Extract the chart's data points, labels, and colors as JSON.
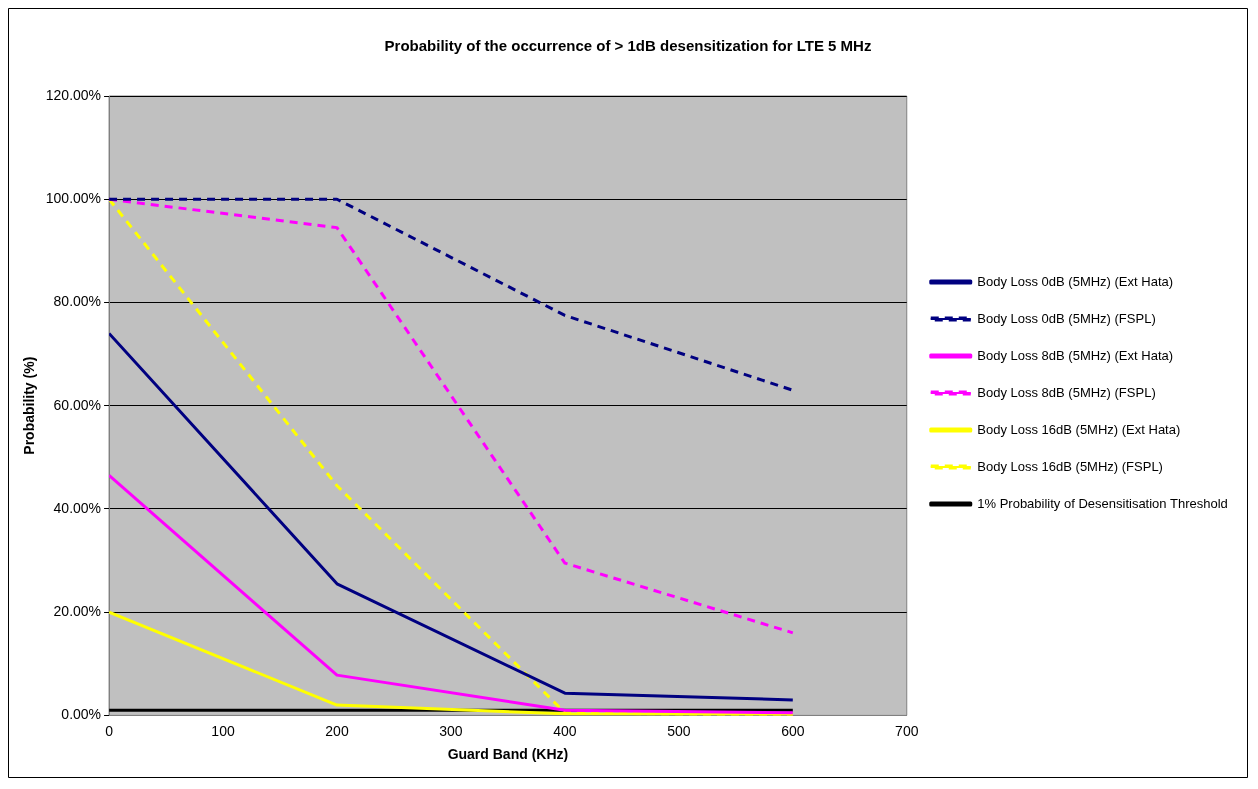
{
  "chart_data": {
    "type": "line",
    "title": "Probability of the occurrence of > 1dB desensitization for LTE 5 MHz",
    "xlabel": "Guard Band (KHz)",
    "ylabel": "Probability (%)",
    "x": [
      0,
      200,
      400,
      600
    ],
    "series": [
      {
        "name": "Body Loss 0dB (5MHz) (Ext Hata)",
        "color": "#000080",
        "line_style": "solid",
        "values": [
          74,
          25.5,
          4.3,
          3
        ]
      },
      {
        "name": "Body Loss 0dB (5MHz) (FSPL)",
        "color": "#000080",
        "line_style": "dashed",
        "values": [
          100,
          100,
          77.5,
          63
        ]
      },
      {
        "name": "Body Loss 8dB (5MHz) (Ext Hata)",
        "color": "#ff00ff",
        "line_style": "solid",
        "values": [
          46.5,
          7.8,
          1,
          0.5
        ]
      },
      {
        "name": "Body Loss 8dB (5MHz) (FSPL)",
        "color": "#ff00ff",
        "line_style": "dashed",
        "values": [
          100,
          94.5,
          29.5,
          16
        ]
      },
      {
        "name": "Body Loss 16dB (5MHz) (Ext Hata)",
        "color": "#ffff00",
        "line_style": "solid",
        "values": [
          20,
          2,
          0.3,
          0.2
        ]
      },
      {
        "name": "Body Loss 16dB (5MHz) (FSPL)",
        "color": "#ffff00",
        "line_style": "dashed",
        "values": [
          100,
          44.5,
          0.5,
          0
        ]
      },
      {
        "name": "1% Probability of Desensitisation Threshold",
        "color": "#000000",
        "line_style": "solid",
        "values": [
          1,
          1,
          1,
          1
        ]
      }
    ],
    "xlim": [
      0,
      700
    ],
    "xticks": [
      0,
      100,
      200,
      300,
      400,
      500,
      600,
      700
    ],
    "ylim": [
      0,
      120
    ],
    "yticks": [
      {
        "value": 0,
        "label": "0.00%"
      },
      {
        "value": 20,
        "label": "20.00%"
      },
      {
        "value": 40,
        "label": "40.00%"
      },
      {
        "value": 60,
        "label": "60.00%"
      },
      {
        "value": 80,
        "label": "80.00%"
      },
      {
        "value": 100,
        "label": "100.00%"
      },
      {
        "value": 120,
        "label": "120.00%"
      }
    ],
    "grid": "y",
    "legend": "right",
    "marker": "none"
  }
}
